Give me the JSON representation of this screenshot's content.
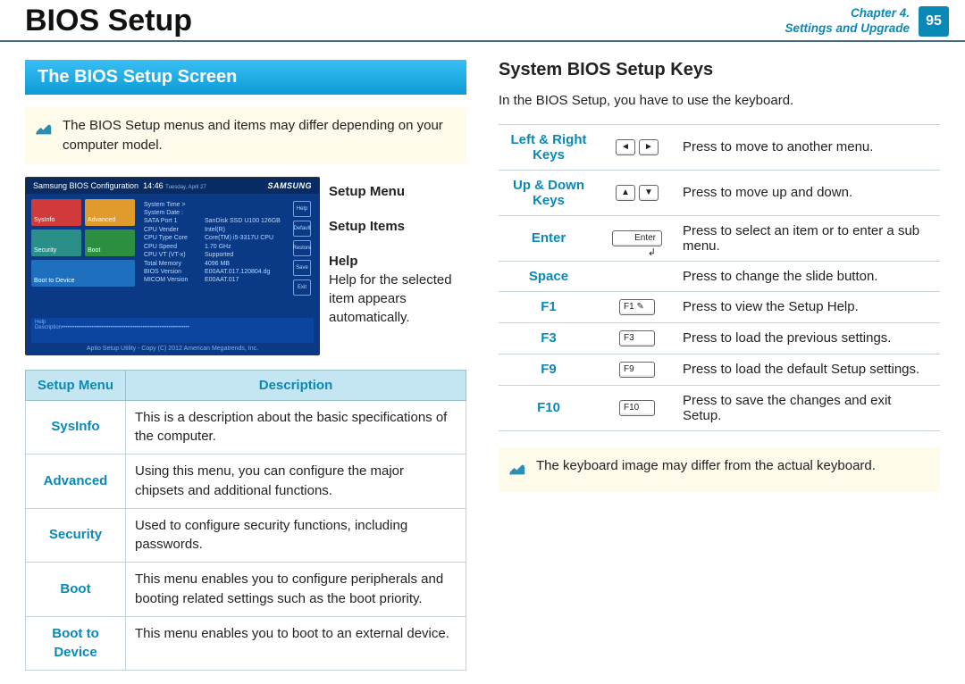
{
  "header": {
    "title": "BIOS Setup",
    "chapter_line1": "Chapter 4.",
    "chapter_line2": "Settings and Upgrade",
    "page_number": "95"
  },
  "left": {
    "section_title": "The BIOS Setup Screen",
    "note": "The BIOS Setup menus and items may differ depending on your computer model.",
    "callouts": {
      "setup_menu": "Setup Menu",
      "setup_items": "Setup Items",
      "help_title": "Help",
      "help_body": "Help for the selected item appears automatically."
    },
    "bios": {
      "title": "Samsung BIOS Configuration",
      "time": "14:46",
      "day": "Tuesday, April 27",
      "logo": "SAMSUNG",
      "tiles": {
        "sysinfo": "SysInfo",
        "advanced": "Advanced",
        "security": "Security",
        "boot": "Boot",
        "boot_to_device": "Boot to Device"
      },
      "info": [
        {
          "k": "System Time >",
          "v": ""
        },
        {
          "k": "System Date :",
          "v": ""
        },
        {
          "k": "SATA Port 1",
          "v": "SanDisk SSD U100 126GB"
        },
        {
          "k": "CPU Vender",
          "v": "Intel(R)"
        },
        {
          "k": "CPU Type Core",
          "v": "Core(TM) i5-3317U CPU"
        },
        {
          "k": "CPU Speed",
          "v": "1.70 GHz"
        },
        {
          "k": "CPU VT (VT-x)",
          "v": "Supported"
        },
        {
          "k": "Total Memory",
          "v": "4096 MB"
        },
        {
          "k": "BIOS Version",
          "v": "E00AAT.017.120804.dg"
        },
        {
          "k": "MICOM Version",
          "v": "E00AAT.017"
        }
      ],
      "side": [
        "Help",
        "Default",
        "Restore",
        "Save",
        "Exit"
      ],
      "footer": "Aptio Setup Utility - Copy (C) 2012 American Megatrends, Inc."
    },
    "table": {
      "col1": "Setup Menu",
      "col2": "Description",
      "rows": [
        {
          "key": "SysInfo",
          "desc": "This is a description about the basic specifications of the computer."
        },
        {
          "key": "Advanced",
          "desc": "Using this menu, you can configure the major chipsets and additional functions."
        },
        {
          "key": "Security",
          "desc": "Used to configure security functions, including passwords."
        },
        {
          "key": "Boot",
          "desc": "This menu enables you to configure peripherals and booting related settings such as the boot priority."
        },
        {
          "key": "Boot to Device",
          "desc": "This menu enables you to boot to an external device."
        }
      ]
    }
  },
  "right": {
    "heading": "System BIOS Setup Keys",
    "intro": "In the BIOS Setup, you have to use the keyboard.",
    "rows": [
      {
        "label": "Left & Right Keys",
        "keys": "lr",
        "desc": "Press to move to another menu."
      },
      {
        "label": "Up & Down Keys",
        "keys": "ud",
        "desc": "Press to move up and down."
      },
      {
        "label": "Enter",
        "keys": "enter",
        "desc": "Press to select an item or to enter a sub menu."
      },
      {
        "label": "Space",
        "keys": "",
        "desc": "Press to change the slide button."
      },
      {
        "label": "F1",
        "keys": "F1",
        "desc": "Press to view the Setup Help."
      },
      {
        "label": "F3",
        "keys": "F3",
        "desc": "Press to load the previous settings."
      },
      {
        "label": "F9",
        "keys": "F9",
        "desc": "Press to load the default Setup settings."
      },
      {
        "label": "F10",
        "keys": "F10",
        "desc": "Press to save the changes and exit Setup."
      }
    ],
    "note": "The keyboard image may differ from the actual keyboard."
  },
  "colors": {
    "accent": "#0b89b6",
    "section_bar_from": "#38bff5",
    "section_bar_to": "#0d9bd4",
    "note_bg": "#fefbeb",
    "table_header_bg": "#c4e6f3",
    "border": "#c6d2d8"
  }
}
